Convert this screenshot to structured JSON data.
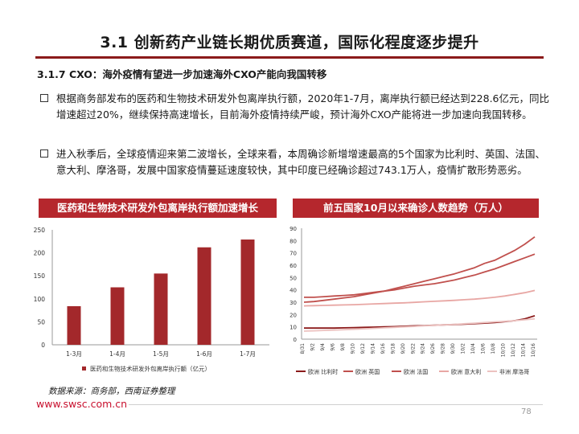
{
  "page": {
    "title": "3.1 创新药产业链长期优质赛道，国际化程度逐步提升",
    "section_heading": "3.1.7 CXO：海外疫情有望进一步加速海外CXO产能向我国转移",
    "bullets": [
      "根据商务部发布的医药和生物技术研发外包离岸执行额，2020年1-7月，离岸执行额已经达到228.6亿元，同比增速超过20%，继续保持高速增长，目前海外疫情持续严峻，预计海外CXO产能将进一步加速向我国转移。",
      "进入秋季后，全球疫情迎来第二波增长，全球来看，本周确诊新增增速最高的5个国家为比利时、英国、法国、意大利、摩洛哥，发展中国家疫情蔓延速度较快，其中印度已经确诊超过743.1万人，疫情扩散形势恶劣。"
    ],
    "source_note": "数据来源：商务部，西南证券整理",
    "footer_url": "www.swsc.com.cn",
    "page_number": "78",
    "accent_color": "#b5272d"
  },
  "left_chart_title": "医药和生物技术研发外包离岸执行额加速增长",
  "right_chart_title": "前五国家10月以来确诊人数趋势（万人）",
  "chart_data": [
    {
      "type": "bar",
      "categories": [
        "1-3月",
        "1-4月",
        "1-5月",
        "1-6月",
        "1-7月"
      ],
      "series": [
        {
          "name": "医药和生物技术研发外包离岸执行额（亿元）",
          "values": [
            84,
            125,
            155,
            212,
            229
          ],
          "color": "#a3282b"
        }
      ],
      "ylim": [
        0,
        250
      ],
      "yticks": [
        0,
        50,
        100,
        150,
        200,
        250
      ],
      "legend": "bottom",
      "grid": false
    },
    {
      "type": "line",
      "x": [
        "8/31",
        "9/2",
        "9/4",
        "9/6",
        "9/8",
        "9/10",
        "9/12",
        "9/14",
        "9/16",
        "9/18",
        "9/20",
        "9/22",
        "9/24",
        "9/26",
        "9/28",
        "9/30",
        "10/2",
        "10/4",
        "10/6",
        "10/8",
        "10/10",
        "10/12",
        "10/14",
        "10/16"
      ],
      "series": [
        {
          "name": "欧洲 比利时",
          "color": "#8b1a1a",
          "values": [
            9,
            9,
            9,
            9,
            9.2,
            9.4,
            9.6,
            9.8,
            10,
            10.2,
            10.5,
            10.8,
            11,
            11.3,
            11.6,
            11.9,
            12.2,
            12.6,
            13,
            13.5,
            14.2,
            15,
            16.5,
            19
          ]
        },
        {
          "name": "欧洲 英国",
          "color": "#c0504d",
          "values": [
            34,
            34,
            34.5,
            35,
            35.5,
            36,
            37,
            38,
            39,
            40,
            41.5,
            43,
            44,
            45,
            46.5,
            48,
            50,
            52,
            54.5,
            57,
            60,
            63,
            66,
            69
          ]
        },
        {
          "name": "欧洲 法国",
          "color": "#c0504d",
          "values": [
            30,
            30.5,
            31.5,
            32.5,
            33.5,
            34.5,
            36,
            37.5,
            39,
            41,
            43,
            45,
            47,
            49,
            51,
            53,
            55.5,
            58,
            61.5,
            64,
            68,
            72,
            77,
            83
          ]
        },
        {
          "name": "欧洲 意大利",
          "color": "#e8a7a4",
          "values": [
            27,
            27.2,
            27.4,
            27.6,
            27.8,
            28,
            28.3,
            28.6,
            28.9,
            29.2,
            29.5,
            29.9,
            30.3,
            30.7,
            31.1,
            31.5,
            32,
            32.5,
            33.2,
            34,
            35,
            36.3,
            37.7,
            39.5
          ]
        },
        {
          "name": "非洲 摩洛哥",
          "color": "#ecc2c0",
          "values": [
            6.5,
            6.8,
            7.1,
            7.4,
            7.7,
            8,
            8.4,
            8.8,
            9.2,
            9.6,
            10,
            10.4,
            10.8,
            11.2,
            11.6,
            12,
            12.5,
            13,
            13.5,
            14,
            14.5,
            15,
            15.7,
            16.5
          ]
        }
      ],
      "ylim": [
        0,
        90
      ],
      "yticks": [
        0,
        10,
        20,
        30,
        40,
        50,
        60,
        70,
        80,
        90
      ],
      "legend": "bottom",
      "grid": false
    }
  ]
}
